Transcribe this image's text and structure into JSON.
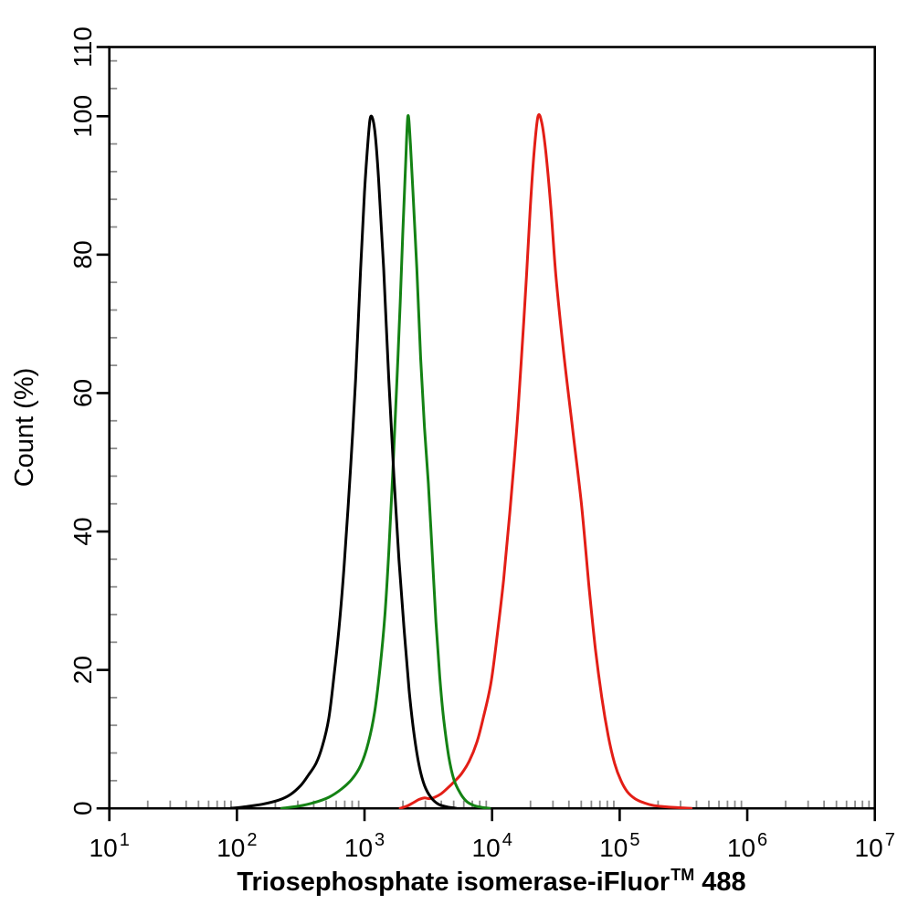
{
  "chart": {
    "ylabel": "Count (%)",
    "xlabel_prefix": "Triosephosphate isomerase-iFluor",
    "xlabel_tm": "TM",
    "xlabel_suffix": "488",
    "background_color": "#ffffff",
    "axis_color": "#000000",
    "minor_tick_color": "#8c8c8c"
  },
  "chart_data": {
    "type": "line",
    "subtype": "flow-cytometry-histogram",
    "title": "",
    "xlabel": "Triosephosphate isomerase-iFluor™ 488",
    "ylabel": "Count (%)",
    "x_scale": "log10",
    "xlim_log10": [
      1,
      7
    ],
    "x_tick_exponents": [
      1,
      2,
      3,
      4,
      5,
      6,
      7
    ],
    "x_tick_base": "10",
    "x_minor_ticks": "2-9 within each decade",
    "ylim": [
      0,
      110
    ],
    "y_ticks": [
      0,
      20,
      40,
      60,
      80,
      100,
      110
    ],
    "y_minor_step": 4,
    "grid": false,
    "legend": "none",
    "points_format": [
      "log10_x",
      "count_percent"
    ],
    "series": [
      {
        "name": "red-curve",
        "color": "#e31e16",
        "peak_log10x": 4.36,
        "peak_x_approx": 23000,
        "peak_count_percent": 100,
        "points": [
          [
            3.28,
            0
          ],
          [
            3.34,
            0.4
          ],
          [
            3.39,
            0.9
          ],
          [
            3.43,
            1.3
          ],
          [
            3.47,
            1.5
          ],
          [
            3.51,
            1.4
          ],
          [
            3.55,
            1.6
          ],
          [
            3.6,
            2.1
          ],
          [
            3.65,
            2.9
          ],
          [
            3.7,
            3.8
          ],
          [
            3.76,
            5
          ],
          [
            3.82,
            6.8
          ],
          [
            3.88,
            9.5
          ],
          [
            3.93,
            13
          ],
          [
            3.99,
            18
          ],
          [
            4.04,
            25
          ],
          [
            4.09,
            33
          ],
          [
            4.14,
            43
          ],
          [
            4.19,
            54
          ],
          [
            4.23,
            65
          ],
          [
            4.27,
            77
          ],
          [
            4.3,
            87
          ],
          [
            4.33,
            95
          ],
          [
            4.36,
            100
          ],
          [
            4.39,
            99
          ],
          [
            4.42,
            95
          ],
          [
            4.46,
            87
          ],
          [
            4.5,
            77
          ],
          [
            4.56,
            66
          ],
          [
            4.63,
            55
          ],
          [
            4.7,
            44
          ],
          [
            4.76,
            32
          ],
          [
            4.81,
            23
          ],
          [
            4.86,
            16
          ],
          [
            4.91,
            10.5
          ],
          [
            4.96,
            6.5
          ],
          [
            5.01,
            4
          ],
          [
            5.06,
            2.4
          ],
          [
            5.12,
            1.4
          ],
          [
            5.19,
            0.8
          ],
          [
            5.27,
            0.4
          ],
          [
            5.38,
            0.2
          ],
          [
            5.48,
            0.08
          ],
          [
            5.56,
            0
          ]
        ]
      },
      {
        "name": "green-curve",
        "color": "#148214",
        "peak_log10x": 3.34,
        "peak_x_approx": 2200,
        "peak_count_percent": 100,
        "points": [
          [
            2.35,
            0
          ],
          [
            2.48,
            0.3
          ],
          [
            2.6,
            0.8
          ],
          [
            2.72,
            1.6
          ],
          [
            2.82,
            2.8
          ],
          [
            2.9,
            4.2
          ],
          [
            2.97,
            6.2
          ],
          [
            3.03,
            9.5
          ],
          [
            3.08,
            14
          ],
          [
            3.12,
            20
          ],
          [
            3.16,
            28
          ],
          [
            3.19,
            37
          ],
          [
            3.22,
            48
          ],
          [
            3.25,
            60
          ],
          [
            3.28,
            73
          ],
          [
            3.3,
            83
          ],
          [
            3.32,
            92
          ],
          [
            3.34,
            100
          ],
          [
            3.36,
            96
          ],
          [
            3.38,
            89
          ],
          [
            3.41,
            78
          ],
          [
            3.44,
            65
          ],
          [
            3.47,
            55
          ],
          [
            3.5,
            47
          ],
          [
            3.53,
            37
          ],
          [
            3.56,
            27
          ],
          [
            3.59,
            19
          ],
          [
            3.62,
            13
          ],
          [
            3.66,
            7.5
          ],
          [
            3.7,
            4.2
          ],
          [
            3.75,
            2.2
          ],
          [
            3.8,
            1
          ],
          [
            3.86,
            0.4
          ],
          [
            3.93,
            0.1
          ],
          [
            3.98,
            0
          ]
        ]
      },
      {
        "name": "black-curve",
        "color": "#000000",
        "peak_log10x": 3.05,
        "peak_x_approx": 1100,
        "peak_count_percent": 100,
        "points": [
          [
            1.95,
            0
          ],
          [
            2.05,
            0.2
          ],
          [
            2.2,
            0.6
          ],
          [
            2.33,
            1.2
          ],
          [
            2.42,
            2
          ],
          [
            2.5,
            3.3
          ],
          [
            2.56,
            4.8
          ],
          [
            2.62,
            6.5
          ],
          [
            2.67,
            9
          ],
          [
            2.72,
            13
          ],
          [
            2.76,
            19
          ],
          [
            2.8,
            26
          ],
          [
            2.84,
            35
          ],
          [
            2.89,
            49
          ],
          [
            2.93,
            62
          ],
          [
            2.97,
            78
          ],
          [
            3.0,
            89
          ],
          [
            3.03,
            97
          ],
          [
            3.05,
            100
          ],
          [
            3.08,
            98
          ],
          [
            3.11,
            91
          ],
          [
            3.15,
            78
          ],
          [
            3.19,
            62
          ],
          [
            3.23,
            48
          ],
          [
            3.27,
            36
          ],
          [
            3.31,
            26
          ],
          [
            3.35,
            17
          ],
          [
            3.39,
            10.5
          ],
          [
            3.43,
            6
          ],
          [
            3.47,
            3.3
          ],
          [
            3.52,
            1.6
          ],
          [
            3.58,
            0.6
          ],
          [
            3.65,
            0.2
          ],
          [
            3.72,
            0
          ]
        ]
      }
    ]
  }
}
